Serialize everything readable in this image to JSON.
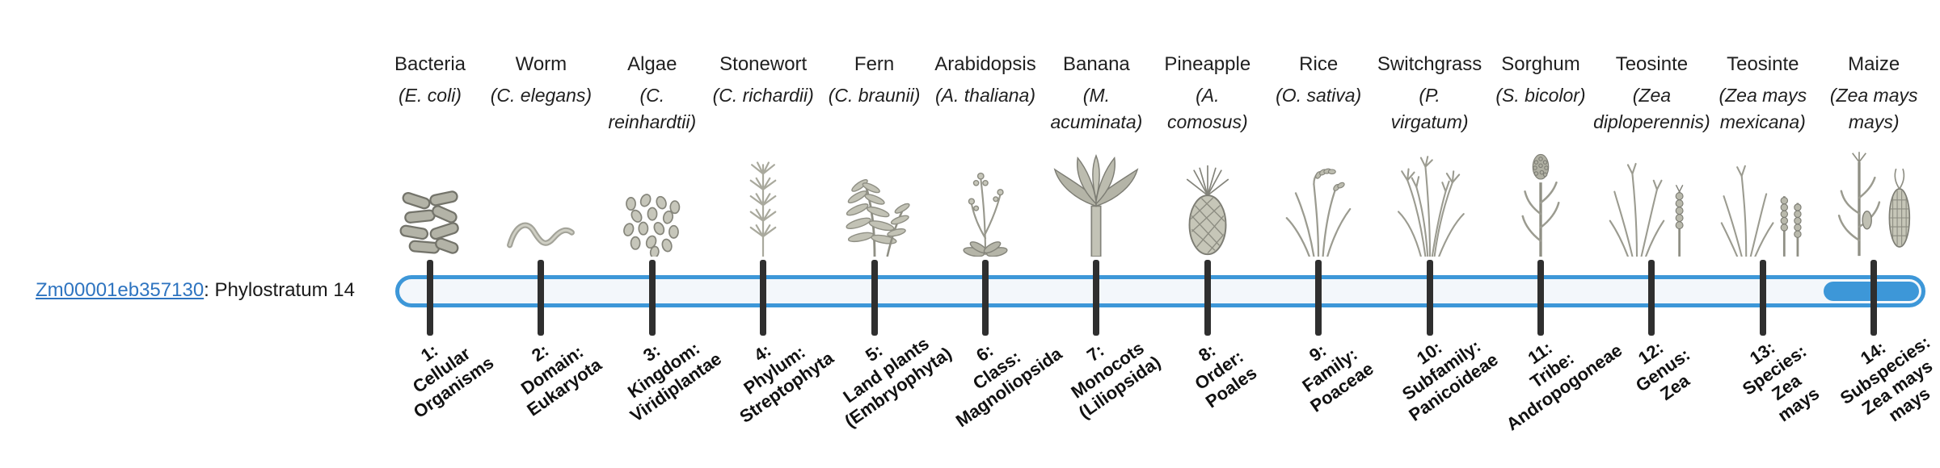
{
  "page": {
    "background": "#ffffff"
  },
  "gene": {
    "id": "Zm00001eb357130",
    "suffix": ": Phylostratum 14"
  },
  "timeline": {
    "strata_count": 14,
    "highlighted_stratum": 14,
    "highlight_description": "Phylostratum 14"
  },
  "colors": {
    "accent_blue": "#3d97d8",
    "link_blue": "#2e74c0",
    "tick_dark": "#2f2f2f",
    "track_fill": "#f3f7fb",
    "illustration_gray": "#9b9b90"
  },
  "taxa": [
    {
      "common_name": "Bacteria",
      "scientific_name_lines": [
        "(E. coli)"
      ],
      "icon": "bacteria-icon",
      "stratum_label_lines": [
        "1:",
        "Cellular",
        "Organisms"
      ]
    },
    {
      "common_name": "Worm",
      "scientific_name_lines": [
        "(C. elegans)"
      ],
      "icon": "worm-icon",
      "stratum_label_lines": [
        "2:",
        "Domain:",
        "Eukaryota"
      ]
    },
    {
      "common_name": "Algae",
      "scientific_name_lines": [
        "(C.",
        "reinhardtii)"
      ],
      "icon": "algae-icon",
      "stratum_label_lines": [
        "3:",
        "Kingdom:",
        "Viridiplantae"
      ]
    },
    {
      "common_name": "Stonewort",
      "scientific_name_lines": [
        "(C. richardii)"
      ],
      "icon": "stonewort-icon",
      "stratum_label_lines": [
        "4:",
        "Phylum:",
        "Streptophyta"
      ]
    },
    {
      "common_name": "Fern",
      "scientific_name_lines": [
        "(C. braunii)"
      ],
      "icon": "fern-icon",
      "stratum_label_lines": [
        "5:",
        "Land plants",
        "(Embryophyta)"
      ]
    },
    {
      "common_name": "Arabidopsis",
      "scientific_name_lines": [
        "(A. thaliana)"
      ],
      "icon": "arabidopsis-icon",
      "stratum_label_lines": [
        "6:",
        "Class:",
        "Magnoliopsida"
      ]
    },
    {
      "common_name": "Banana",
      "scientific_name_lines": [
        "(M.",
        "acuminata)"
      ],
      "icon": "banana-icon",
      "stratum_label_lines": [
        "7:",
        "Monocots",
        "(Liliopsida)"
      ]
    },
    {
      "common_name": "Pineapple",
      "scientific_name_lines": [
        "(A.",
        "comosus)"
      ],
      "icon": "pineapple-icon",
      "stratum_label_lines": [
        "8:",
        "Order:",
        "Poales"
      ]
    },
    {
      "common_name": "Rice",
      "scientific_name_lines": [
        "(O. sativa)"
      ],
      "icon": "rice-icon",
      "stratum_label_lines": [
        "9:",
        "Family:",
        "Poaceae"
      ]
    },
    {
      "common_name": "Switchgrass",
      "scientific_name_lines": [
        "(P.",
        "virgatum)"
      ],
      "icon": "switchgrass-icon",
      "stratum_label_lines": [
        "10:",
        "Subfamily:",
        "Panicoideae"
      ]
    },
    {
      "common_name": "Sorghum",
      "scientific_name_lines": [
        "(S. bicolor)"
      ],
      "icon": "sorghum-icon",
      "stratum_label_lines": [
        "11:",
        "Tribe:",
        "Andropogoneae"
      ]
    },
    {
      "common_name": "Teosinte",
      "scientific_name_lines": [
        "(Zea",
        "diploperennis)"
      ],
      "icon": "teosinte-diploperennis-icon",
      "stratum_label_lines": [
        "12:",
        "Genus:",
        "Zea"
      ]
    },
    {
      "common_name": "Teosinte",
      "scientific_name_lines": [
        "(Zea mays",
        "mexicana)"
      ],
      "icon": "teosinte-mexicana-icon",
      "stratum_label_lines": [
        "13:",
        "Species:",
        "Zea",
        "mays"
      ]
    },
    {
      "common_name": "Maize",
      "scientific_name_lines": [
        "(Zea mays",
        "mays)"
      ],
      "icon": "maize-icon",
      "stratum_label_lines": [
        "14:",
        "Subspecies:",
        "Zea mays",
        "mays"
      ]
    }
  ]
}
